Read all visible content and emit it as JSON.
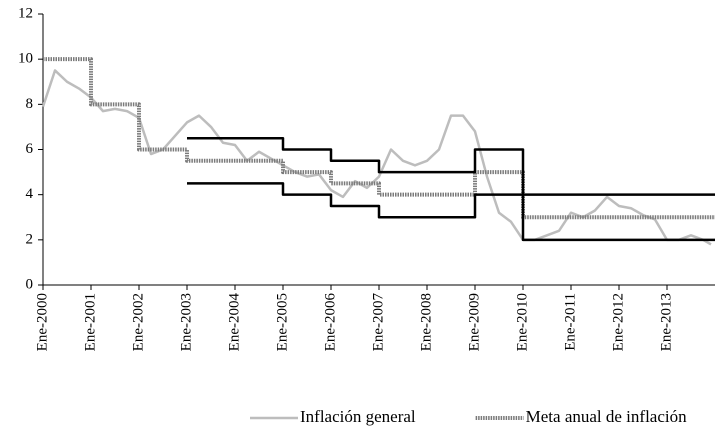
{
  "chart_data": {
    "type": "line",
    "xlim": [
      2000,
      2014
    ],
    "xticks": [
      {
        "value": 2000,
        "label": "Ene-2000"
      },
      {
        "value": 2001,
        "label": "Ene-2001"
      },
      {
        "value": 2002,
        "label": "Ene-2002"
      },
      {
        "value": 2003,
        "label": "Ene-2003"
      },
      {
        "value": 2004,
        "label": "Ene-2004"
      },
      {
        "value": 2005,
        "label": "Ene-2005"
      },
      {
        "value": 2006,
        "label": "Ene-2006"
      },
      {
        "value": 2007,
        "label": "Ene-2007"
      },
      {
        "value": 2008,
        "label": "Ene-2008"
      },
      {
        "value": 2009,
        "label": "Ene-2009"
      },
      {
        "value": 2010,
        "label": "Ene-2010"
      },
      {
        "value": 2011,
        "label": "Ene-2011"
      },
      {
        "value": 2012,
        "label": "Ene-2012"
      },
      {
        "value": 2013,
        "label": "Ene-2013"
      }
    ],
    "ylim": [
      0,
      12
    ],
    "yticks": [
      0,
      2,
      4,
      6,
      8,
      10,
      12
    ],
    "grid": false,
    "legend": "bottom",
    "series": [
      {
        "name": "Inflación general",
        "color": "#bdbdbd",
        "x": [
          2000,
          2000.25,
          2000.5,
          2000.75,
          2001,
          2001.25,
          2001.5,
          2001.75,
          2002,
          2002.25,
          2002.5,
          2002.75,
          2003,
          2003.25,
          2003.5,
          2003.75,
          2004,
          2004.25,
          2004.5,
          2004.75,
          2005,
          2005.25,
          2005.5,
          2005.75,
          2006,
          2006.25,
          2006.5,
          2006.75,
          2007,
          2007.25,
          2007.5,
          2007.75,
          2008,
          2008.25,
          2008.5,
          2008.75,
          2009,
          2009.25,
          2009.5,
          2009.75,
          2010,
          2010.25,
          2010.5,
          2010.75,
          2011,
          2011.25,
          2011.5,
          2011.75,
          2012,
          2012.25,
          2012.5,
          2012.75,
          2013,
          2013.25,
          2013.5,
          2013.75,
          2013.917
        ],
        "values": [
          7.9,
          9.5,
          9.0,
          8.7,
          8.3,
          7.7,
          7.8,
          7.7,
          7.4,
          5.8,
          6.0,
          6.6,
          7.2,
          7.5,
          7.0,
          6.3,
          6.2,
          5.5,
          5.9,
          5.6,
          5.3,
          5.0,
          4.8,
          4.9,
          4.2,
          3.9,
          4.6,
          4.3,
          4.8,
          6.0,
          5.5,
          5.3,
          5.5,
          6.0,
          7.5,
          7.5,
          6.8,
          4.8,
          3.2,
          2.8,
          2.0,
          2.0,
          2.2,
          2.4,
          3.2,
          3.0,
          3.3,
          3.9,
          3.5,
          3.4,
          3.1,
          2.9,
          2.0,
          2.0,
          2.2,
          2.0,
          1.8
        ]
      },
      {
        "name": "Meta anual de inflación",
        "color": "#7a7a7a",
        "dashed": true,
        "x": [
          2000,
          2001,
          2001,
          2002,
          2002,
          2003,
          2003,
          2005,
          2005,
          2006,
          2006,
          2007,
          2007,
          2009,
          2009,
          2010,
          2010,
          2014
        ],
        "values": [
          10,
          10,
          8,
          8,
          6,
          6,
          5.5,
          5.5,
          5,
          5,
          4.5,
          4.5,
          4,
          4,
          5,
          5,
          3,
          3
        ]
      },
      {
        "color": "#000000",
        "x": [
          2003,
          2005,
          2005,
          2006,
          2006,
          2007,
          2007,
          2009,
          2009,
          2010,
          2010,
          2014
        ],
        "values": [
          6.5,
          6.5,
          6,
          6,
          5.5,
          5.5,
          5,
          5,
          6,
          6,
          4,
          4
        ]
      },
      {
        "color": "#000000",
        "x": [
          2003,
          2005,
          2005,
          2006,
          2006,
          2007,
          2007,
          2009,
          2009,
          2010,
          2010,
          2014
        ],
        "values": [
          4.5,
          4.5,
          4,
          4,
          3.5,
          3.5,
          3,
          3,
          4,
          4,
          2,
          2
        ]
      }
    ]
  }
}
